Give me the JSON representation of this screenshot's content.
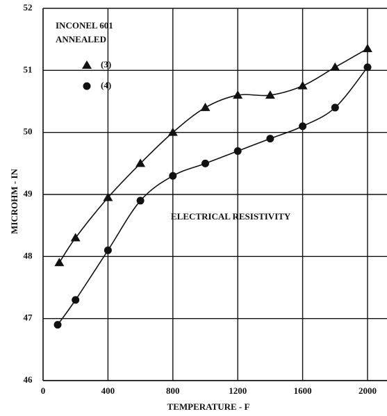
{
  "chart_data": {
    "type": "scatter",
    "title": "INCONEL 601",
    "subtitle": "ANNEALED",
    "annotation": "ELECTRICAL RESISTIVITY",
    "x_label": "TEMPERATURE - F",
    "y_label": "MICROHM - IN",
    "legend": "upper left",
    "grid": true,
    "xlim": [
      0,
      2120
    ],
    "ylim": [
      46,
      52
    ],
    "xticks": [
      0,
      400,
      800,
      1200,
      1600,
      2000
    ],
    "yticks": [
      46,
      47,
      48,
      49,
      50,
      51,
      52
    ],
    "series": [
      {
        "name": "(3)",
        "marker": "triangle",
        "color": "#111111",
        "x": [
          100,
          200,
          400,
          600,
          800,
          1000,
          1200,
          1400,
          1600,
          1800,
          2000
        ],
        "values": [
          47.9,
          48.3,
          48.95,
          49.5,
          50.0,
          50.4,
          50.6,
          50.6,
          50.75,
          51.05,
          51.35
        ]
      },
      {
        "name": "(4)",
        "marker": "circle",
        "color": "#111111",
        "x": [
          90,
          200,
          400,
          600,
          800,
          1000,
          1200,
          1400,
          1600,
          1800,
          2000
        ],
        "values": [
          46.9,
          47.3,
          48.1,
          48.9,
          49.3,
          49.5,
          49.7,
          49.9,
          50.1,
          50.4,
          51.05
        ]
      }
    ]
  }
}
